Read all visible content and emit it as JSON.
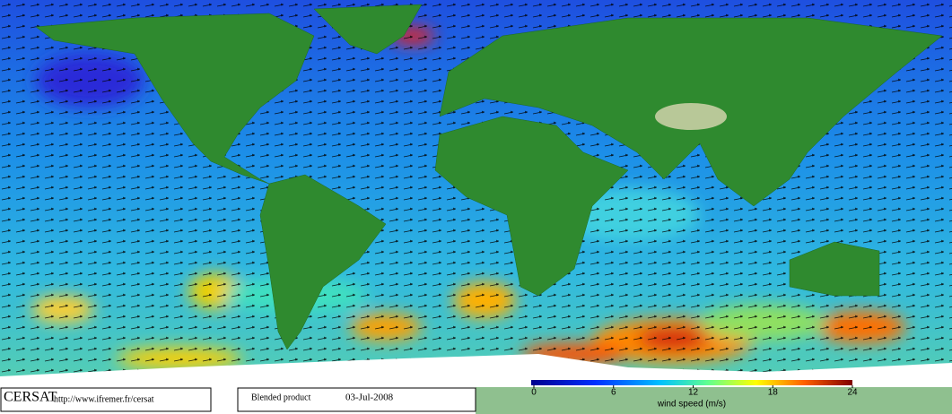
{
  "footer": {
    "logo": "CERSAT",
    "url": "http://www.ifremer.fr/cersat",
    "product": "Blended product",
    "date": "03-Jul-2008"
  },
  "colorbar": {
    "ticks": [
      0,
      6,
      12,
      18,
      24
    ],
    "label": "wind speed (m/s)"
  }
}
